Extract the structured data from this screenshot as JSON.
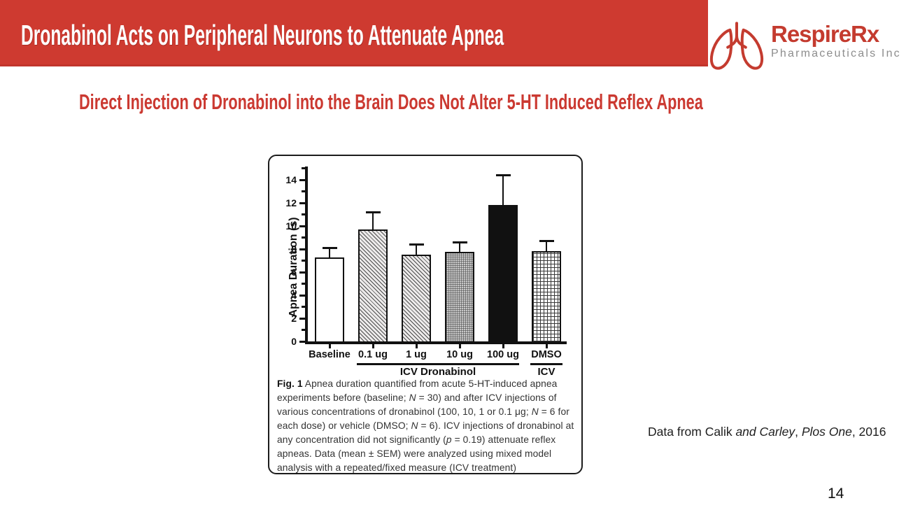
{
  "header": {
    "title": "Dronabinol Acts on Peripheral Neurons to Attenuate Apnea",
    "banner_color": "#ce3a30"
  },
  "logo": {
    "name": "RespireRx",
    "subtitle": "Pharmaceuticals Inc",
    "accent_color": "#c43b2f",
    "gray_color": "#8d8d8d"
  },
  "subtitle": "Direct Injection of Dronabinol into the Brain Does Not Alter 5-HT Induced Reflex Apnea",
  "figure": {
    "caption_html": "<b>Fig. 1</b> Apnea duration quantified from acute 5-HT-induced apnea experiments before (baseline; <i>N</i> = 30) and after ICV injections of various concentrations of dronabinol (100, 10, 1 or 0.1 μg; <i>N</i> = 6 for each dose) or vehicle (DMSO; <i>N</i> = 6). ICV injections of dronabinol at any concentration did not significantly (<i>p</i> = 0.19) attenuate reflex apneas. Data (mean ± SEM) were analyzed using mixed model analysis with a repeated/fixed measure (ICV treatment)"
  },
  "citation_html": "Data from Calik <i>and Carley</i>, <i>Plos One</i>, 2016",
  "page_number": "14",
  "chart_data": {
    "type": "bar",
    "title": "",
    "xlabel": "",
    "ylabel": "Apnea Duration (s)",
    "ylim": [
      0,
      15
    ],
    "ytick_major_step": 2,
    "ytick_major_labels": [
      "0",
      "2",
      "4",
      "6",
      "8",
      "10",
      "12",
      "14"
    ],
    "grid": false,
    "legend": "none",
    "categories": [
      "Baseline",
      "0.1 ug",
      "1 ug",
      "10 ug",
      "100 ug",
      "DMSO"
    ],
    "values": [
      7.3,
      9.7,
      7.5,
      7.75,
      11.8,
      7.8
    ],
    "errors_upper_sem": [
      0.8,
      1.5,
      0.9,
      0.85,
      2.6,
      0.9
    ],
    "bar_patterns": [
      "white",
      "diagonal-hatch",
      "diagonal-hatch",
      "fine-dots",
      "solid-black",
      "grid"
    ],
    "groups": [
      {
        "label": "ICV Dronabinol",
        "from": "0.1 ug",
        "to": "100 ug"
      },
      {
        "label": "ICV",
        "from": "DMSO",
        "to": "DMSO"
      }
    ]
  }
}
